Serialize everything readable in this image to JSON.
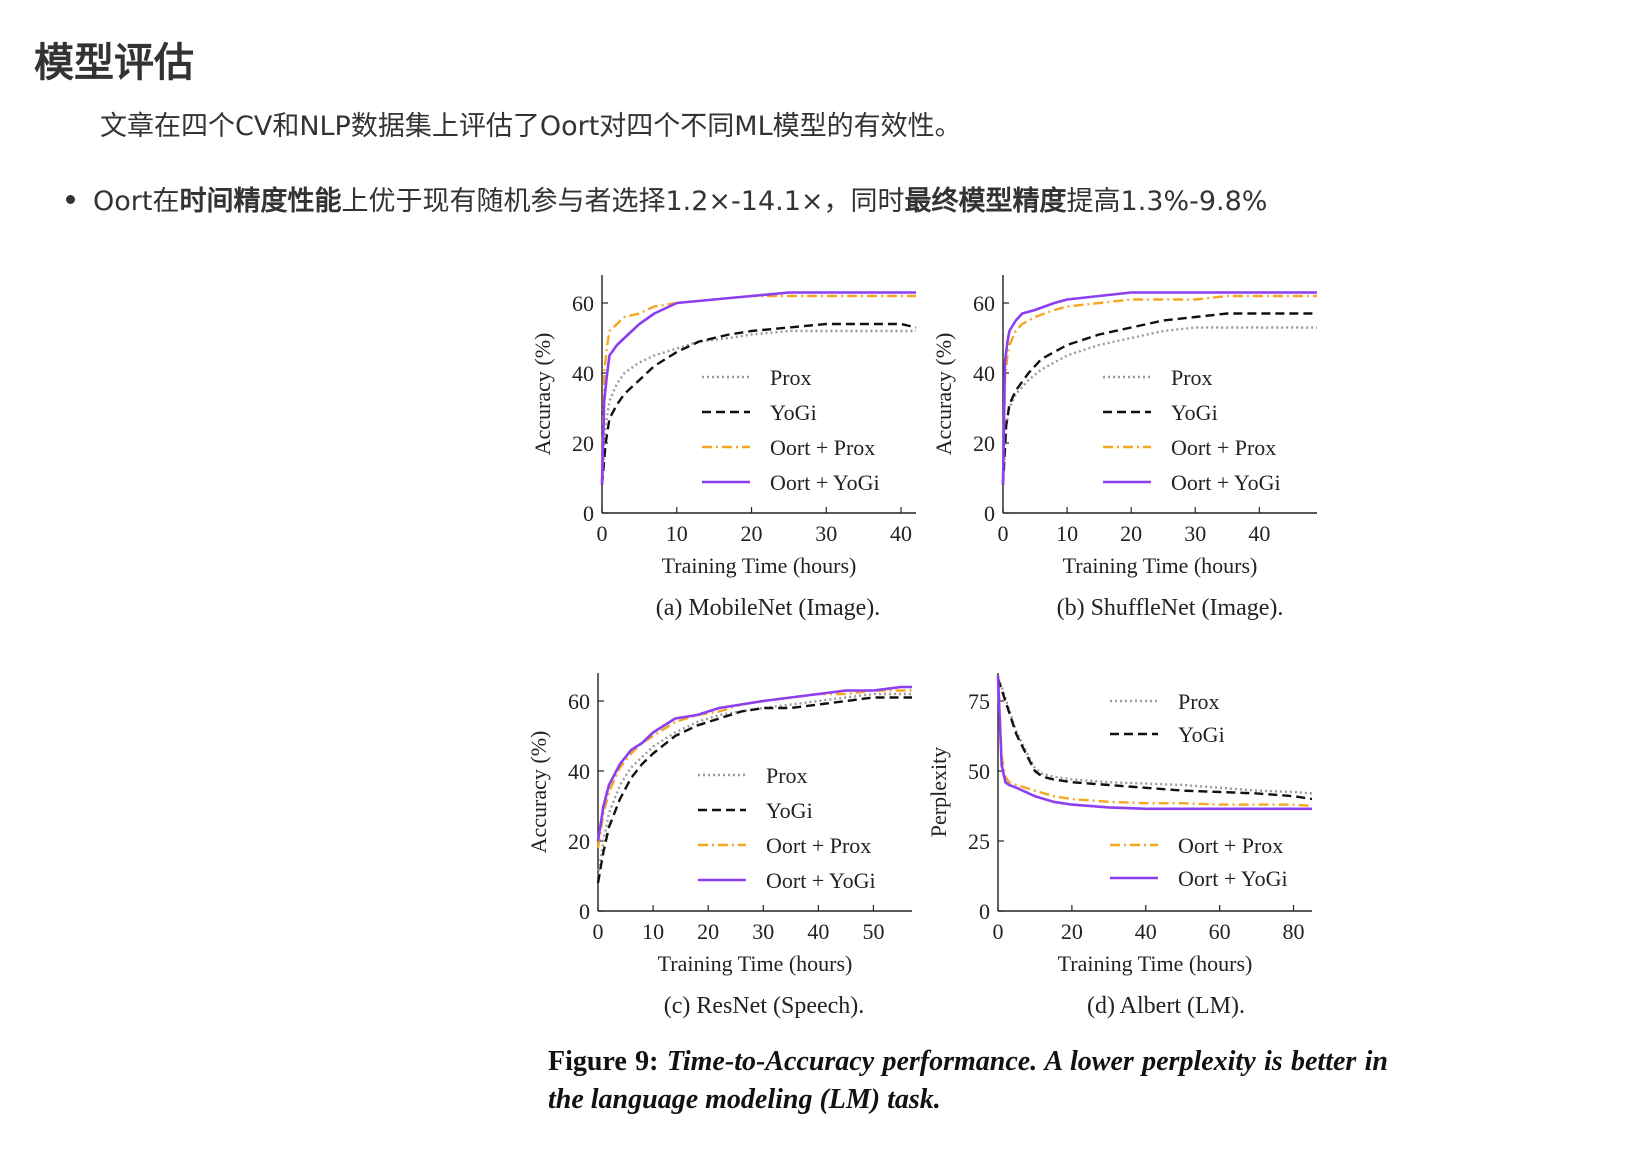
{
  "page": {
    "heading": "模型评估",
    "intro": "文章在四个CV和NLP数据集上评估了Oort对四个不同ML模型的有效性。",
    "bullet": {
      "p1": "Oort在",
      "b1": "时间精度性能",
      "p2": "上优于现有随机参与者选择1.2×-14.1×，同时",
      "b2": "最终模型精度",
      "p3": "提高1.3%-9.8%"
    },
    "figure_label": "Figure 9:",
    "figure_caption": "Time-to-Accuracy performance. A lower perplexity is better in the language modeling (LM) task."
  },
  "colors": {
    "Prox": "#9a9a9a",
    "YoGi": "#111111",
    "Oort + Prox": "#f5a623",
    "Oort + YoGi": "#8b3ff0"
  },
  "chart_data": [
    {
      "type": "line",
      "caption": "(a)  MobileNet (Image).",
      "xlabel": "Training Time (hours)",
      "ylabel": "Accuracy (%)",
      "xlim": [
        0,
        42
      ],
      "ylim": [
        0,
        68
      ],
      "xticks": [
        0,
        10,
        20,
        30,
        40
      ],
      "yticks": [
        0,
        20,
        40,
        60
      ],
      "legend": "center-right",
      "series": [
        {
          "name": "Prox",
          "style": "dotted",
          "x": [
            0,
            0.5,
            1,
            2,
            3,
            5,
            7,
            10,
            13,
            17,
            20,
            25,
            30,
            35,
            40,
            42
          ],
          "y": [
            8,
            25,
            32,
            37,
            40,
            43,
            45,
            47,
            49,
            50,
            51,
            52,
            52,
            52,
            52,
            52
          ]
        },
        {
          "name": "YoGi",
          "style": "dashed",
          "x": [
            0,
            0.5,
            1,
            2,
            3,
            5,
            7,
            10,
            13,
            17,
            20,
            25,
            30,
            35,
            40,
            42
          ],
          "y": [
            8,
            20,
            27,
            31,
            34,
            38,
            42,
            46,
            49,
            51,
            52,
            53,
            54,
            54,
            54,
            53
          ]
        },
        {
          "name": "Oort + Prox",
          "style": "dashdot",
          "x": [
            0,
            0.3,
            0.7,
            1,
            2,
            3,
            5,
            7,
            10,
            15,
            20,
            25,
            30,
            35,
            40,
            42
          ],
          "y": [
            8,
            40,
            48,
            52,
            54,
            56,
            57,
            59,
            60,
            61,
            62,
            62,
            62,
            62,
            62,
            62
          ]
        },
        {
          "name": "Oort + YoGi",
          "style": "solid",
          "x": [
            0,
            0.3,
            0.7,
            1,
            2,
            3,
            5,
            7,
            10,
            15,
            20,
            25,
            30,
            35,
            40,
            42
          ],
          "y": [
            8,
            32,
            40,
            45,
            48,
            50,
            54,
            57,
            60,
            61,
            62,
            63,
            63,
            63,
            63,
            63
          ]
        }
      ]
    },
    {
      "type": "line",
      "caption": "(b)  ShuffleNet (Image).",
      "xlabel": "Training Time (hours)",
      "ylabel": "Accuracy (%)",
      "xlim": [
        0,
        49
      ],
      "ylim": [
        0,
        68
      ],
      "xticks": [
        0,
        10,
        20,
        30,
        40
      ],
      "yticks": [
        0,
        20,
        40,
        60
      ],
      "legend": "center-right",
      "series": [
        {
          "name": "Prox",
          "style": "dotted",
          "x": [
            0,
            0.5,
            1,
            2,
            4,
            6,
            8,
            10,
            15,
            20,
            25,
            30,
            35,
            40,
            45,
            49
          ],
          "y": [
            8,
            25,
            30,
            34,
            38,
            41,
            43,
            45,
            48,
            50,
            52,
            53,
            53,
            53,
            53,
            53
          ]
        },
        {
          "name": "YoGi",
          "style": "dashed",
          "x": [
            0,
            0.5,
            1,
            2,
            4,
            6,
            8,
            10,
            15,
            20,
            25,
            30,
            35,
            40,
            45,
            49
          ],
          "y": [
            8,
            25,
            31,
            35,
            40,
            44,
            46,
            48,
            51,
            53,
            55,
            56,
            57,
            57,
            57,
            57
          ]
        },
        {
          "name": "Oort + Prox",
          "style": "dashdot",
          "x": [
            0,
            0.3,
            0.7,
            1,
            2,
            3,
            5,
            8,
            10,
            15,
            20,
            25,
            30,
            35,
            40,
            45,
            49
          ],
          "y": [
            8,
            38,
            45,
            48,
            52,
            54,
            56,
            58,
            59,
            60,
            61,
            61,
            61,
            62,
            62,
            62,
            62
          ]
        },
        {
          "name": "Oort + YoGi",
          "style": "solid",
          "x": [
            0,
            0.3,
            0.7,
            1,
            2,
            3,
            5,
            8,
            10,
            15,
            20,
            25,
            30,
            35,
            40,
            45,
            49
          ],
          "y": [
            8,
            43,
            49,
            52,
            55,
            57,
            58,
            60,
            61,
            62,
            63,
            63,
            63,
            63,
            63,
            63,
            63
          ]
        }
      ]
    },
    {
      "type": "line",
      "caption": "(c)  ResNet (Speech).",
      "xlabel": "Training Time (hours)",
      "ylabel": "Accuracy (%)",
      "xlim": [
        0,
        57
      ],
      "ylim": [
        0,
        68
      ],
      "xticks": [
        0,
        10,
        20,
        30,
        40,
        50
      ],
      "yticks": [
        0,
        20,
        40,
        60
      ],
      "legend": "center-right",
      "series": [
        {
          "name": "Prox",
          "style": "dotted",
          "x": [
            0,
            1,
            2,
            4,
            6,
            8,
            10,
            14,
            18,
            22,
            26,
            30,
            35,
            40,
            45,
            50,
            55,
            57
          ],
          "y": [
            10,
            20,
            28,
            36,
            41,
            44,
            47,
            51,
            54,
            56,
            57,
            58,
            59,
            60,
            61,
            62,
            62,
            62
          ]
        },
        {
          "name": "YoGi",
          "style": "dashed",
          "x": [
            0,
            1,
            2,
            4,
            6,
            8,
            10,
            14,
            18,
            22,
            26,
            30,
            35,
            40,
            45,
            50,
            55,
            57
          ],
          "y": [
            8,
            17,
            24,
            32,
            38,
            42,
            45,
            50,
            53,
            55,
            57,
            58,
            58,
            59,
            60,
            61,
            61,
            61
          ]
        },
        {
          "name": "Oort + Prox",
          "style": "dashdot",
          "x": [
            0,
            1,
            2,
            4,
            6,
            8,
            10,
            14,
            18,
            22,
            26,
            30,
            35,
            40,
            45,
            50,
            55,
            57
          ],
          "y": [
            18,
            28,
            34,
            41,
            45,
            48,
            50,
            54,
            56,
            57,
            59,
            60,
            61,
            62,
            62,
            63,
            63,
            63
          ]
        },
        {
          "name": "Oort + YoGi",
          "style": "solid",
          "x": [
            0,
            1,
            2,
            4,
            6,
            8,
            10,
            14,
            18,
            22,
            26,
            30,
            35,
            40,
            45,
            50,
            55,
            57
          ],
          "y": [
            20,
            30,
            36,
            42,
            46,
            48,
            51,
            55,
            56,
            58,
            59,
            60,
            61,
            62,
            63,
            63,
            64,
            64
          ]
        }
      ]
    },
    {
      "type": "line",
      "caption": "(d)  Albert (LM).",
      "xlabel": "Training Time (hours)",
      "ylabel": "Perplexity",
      "xlim": [
        0,
        85
      ],
      "ylim": [
        0,
        85
      ],
      "xticks": [
        0,
        20,
        40,
        60,
        80
      ],
      "yticks": [
        0,
        25,
        50,
        75
      ],
      "legend": "split: top-right (Prox, YoGi), bottom-right (Oort + Prox, Oort + YoGi)",
      "series": [
        {
          "name": "Prox",
          "style": "dotted",
          "x": [
            0,
            1,
            3,
            5,
            8,
            10,
            12,
            15,
            20,
            30,
            40,
            50,
            60,
            70,
            80,
            85
          ],
          "y": [
            83,
            80,
            72,
            64,
            56,
            51,
            49,
            48,
            47,
            46,
            45.5,
            45,
            44,
            43,
            42.5,
            42
          ]
        },
        {
          "name": "YoGi",
          "style": "dashed",
          "x": [
            0,
            1,
            3,
            5,
            8,
            10,
            12,
            15,
            20,
            30,
            40,
            50,
            60,
            70,
            80,
            85
          ],
          "y": [
            83,
            79,
            71,
            63,
            55,
            50,
            48,
            47,
            46,
            45,
            44,
            43,
            42.5,
            42,
            41,
            40
          ]
        },
        {
          "name": "Oort + Prox",
          "style": "dashdot",
          "x": [
            0,
            0.5,
            1,
            2,
            3,
            5,
            10,
            15,
            20,
            30,
            40,
            50,
            60,
            70,
            80,
            85
          ],
          "y": [
            84,
            70,
            55,
            48,
            46,
            45,
            43,
            41,
            40,
            39,
            38.5,
            38.5,
            38,
            38,
            38,
            37.5
          ]
        },
        {
          "name": "Oort + YoGi",
          "style": "solid",
          "x": [
            0,
            0.5,
            1,
            2,
            3,
            5,
            10,
            15,
            20,
            30,
            40,
            50,
            60,
            70,
            80,
            85
          ],
          "y": [
            84,
            68,
            52,
            46,
            45,
            44,
            41,
            39,
            38,
            37,
            36.5,
            36.5,
            36.5,
            36.5,
            36.5,
            36.5
          ]
        }
      ]
    }
  ]
}
